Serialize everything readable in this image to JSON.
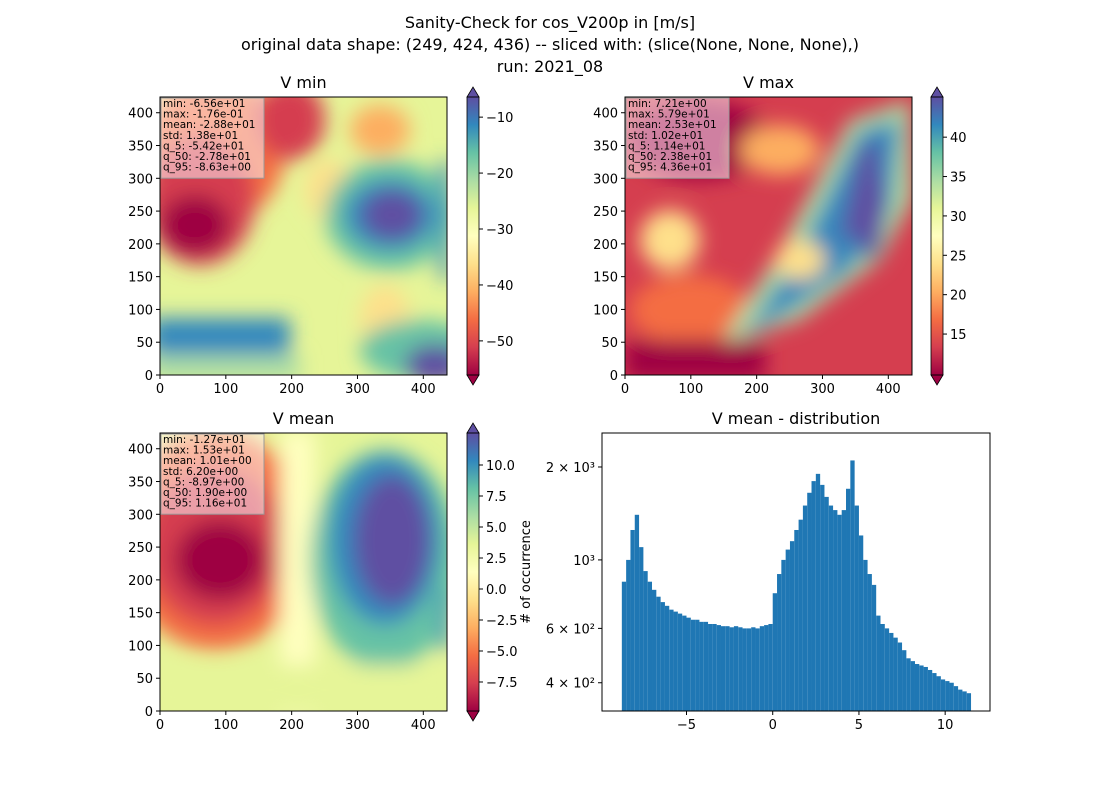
{
  "suptitle": [
    "Sanity-Check for cos_V200p in [m/s]",
    "original data shape: (249, 424, 436) -- sliced with: (slice(None, None, None),)",
    "run: 2021_08"
  ],
  "chart_data": [
    {
      "type": "image",
      "title": "V min",
      "xlim": [
        0,
        436
      ],
      "ylim": [
        0,
        424
      ],
      "xticks": [
        0,
        100,
        200,
        300,
        400
      ],
      "yticks": [
        0,
        50,
        100,
        150,
        200,
        250,
        300,
        350,
        400
      ],
      "stats": [
        "min: -6.56e+01",
        "max: -1.76e-01",
        "mean: -2.88e+01",
        "std: 1.38e+01",
        "q_5: -5.42e+01",
        "q_50: -2.78e+01",
        "q_95: -8.63e+00"
      ],
      "clim": [
        -56.1,
        -6.4
      ],
      "cticks": [
        {
          "value": -50,
          "label": "−50"
        },
        {
          "value": -40,
          "label": "−40"
        },
        {
          "value": -30,
          "label": "−30"
        },
        {
          "value": -20,
          "label": "−20"
        },
        {
          "value": -10,
          "label": "−10"
        }
      ]
    },
    {
      "type": "image",
      "title": "V max",
      "xlim": [
        0,
        436
      ],
      "ylim": [
        0,
        424
      ],
      "xticks": [
        0,
        100,
        200,
        300,
        400
      ],
      "yticks": [
        0,
        50,
        100,
        150,
        200,
        250,
        300,
        350,
        400
      ],
      "stats": [
        "min: 7.21e+00",
        "max: 5.79e+01",
        "mean: 2.53e+01",
        "std: 1.02e+01",
        "q_5: 1.14e+01",
        "q_50: 2.38e+01",
        "q_95: 4.36e+01"
      ],
      "clim": [
        9.8,
        45.1
      ],
      "cticks": [
        15,
        20,
        25,
        30,
        35,
        40
      ]
    },
    {
      "type": "image",
      "title": "V mean",
      "xlim": [
        0,
        436
      ],
      "ylim": [
        0,
        424
      ],
      "xticks": [
        0,
        100,
        200,
        300,
        400
      ],
      "yticks": [
        0,
        50,
        100,
        150,
        200,
        250,
        300,
        350,
        400
      ],
      "stats": [
        "min: -1.27e+01",
        "max: 1.53e+01",
        "mean: 1.01e+00",
        "std: 6.20e+00",
        "q_5: -8.97e+00",
        "q_50: 1.90e+00",
        "q_95: 1.16e+01"
      ],
      "clim": [
        -9.84,
        12.58
      ],
      "cticks": [
        {
          "value": -7.5,
          "label": "−7.5"
        },
        {
          "value": -5,
          "label": "−5.0"
        },
        {
          "value": -2.5,
          "label": "−2.5"
        },
        {
          "value": 0,
          "label": "0.0"
        },
        {
          "value": 2.5,
          "label": "2.5"
        },
        {
          "value": 5,
          "label": "5.0"
        },
        {
          "value": 7.5,
          "label": "7.5"
        },
        {
          "value": 10,
          "label": "10.0"
        }
      ]
    },
    {
      "type": "histogram",
      "title": "V mean - distribution",
      "ylabel": "# of occurrence",
      "color": "#1f77b4",
      "log_y": true,
      "xlim": [
        -9.9,
        12.6
      ],
      "ylim": [
        324,
        2577
      ],
      "xticks": [
        {
          "value": -5,
          "label": "−5"
        },
        0,
        5,
        10
      ],
      "yticks": [
        {
          "value": 400,
          "label": "4 × 10²"
        },
        {
          "value": 600,
          "label": "6 × 10²"
        },
        {
          "value": 1000,
          "label": "10³"
        },
        {
          "value": 2000,
          "label": "2 × 10³"
        }
      ],
      "bins": [
        -8.75,
        -8.5,
        -8.25,
        -8.0,
        -7.75,
        -7.5,
        -7.25,
        -7.0,
        -6.75,
        -6.5,
        -6.25,
        -6.0,
        -5.75,
        -5.5,
        -5.25,
        -5.0,
        -4.75,
        -4.5,
        -4.25,
        -4.0,
        -3.75,
        -3.5,
        -3.25,
        -3.0,
        -2.75,
        -2.5,
        -2.25,
        -2.0,
        -1.75,
        -1.5,
        -1.25,
        -1.0,
        -0.75,
        -0.5,
        -0.25,
        0.0,
        0.25,
        0.5,
        0.75,
        1.0,
        1.25,
        1.5,
        1.75,
        2.0,
        2.25,
        2.5,
        2.75,
        3.0,
        3.25,
        3.5,
        3.75,
        4.0,
        4.25,
        4.5,
        4.75,
        5.0,
        5.25,
        5.5,
        5.75,
        6.0,
        6.25,
        6.5,
        6.75,
        7.0,
        7.25,
        7.5,
        7.75,
        8.0,
        8.25,
        8.5,
        8.75,
        9.0,
        9.25,
        9.5,
        9.75,
        10.0,
        10.25,
        10.5,
        10.75,
        11.0,
        11.25,
        11.5
      ],
      "values": [
        850,
        1000,
        1250,
        1400,
        1100,
        920,
        850,
        800,
        760,
        730,
        710,
        690,
        680,
        670,
        660,
        650,
        640,
        640,
        630,
        630,
        620,
        620,
        615,
        610,
        610,
        605,
        610,
        605,
        600,
        600,
        605,
        600,
        610,
        615,
        620,
        780,
        900,
        1000,
        1080,
        1150,
        1250,
        1350,
        1500,
        1650,
        1800,
        1900,
        1750,
        1600,
        1500,
        1450,
        1400,
        1450,
        1700,
        2100,
        1500,
        1200,
        1000,
        900,
        830,
        660,
        620,
        600,
        580,
        560,
        540,
        510,
        480,
        470,
        460,
        455,
        450,
        440,
        430,
        420,
        410,
        405,
        400,
        390,
        380,
        375,
        370
      ]
    }
  ]
}
